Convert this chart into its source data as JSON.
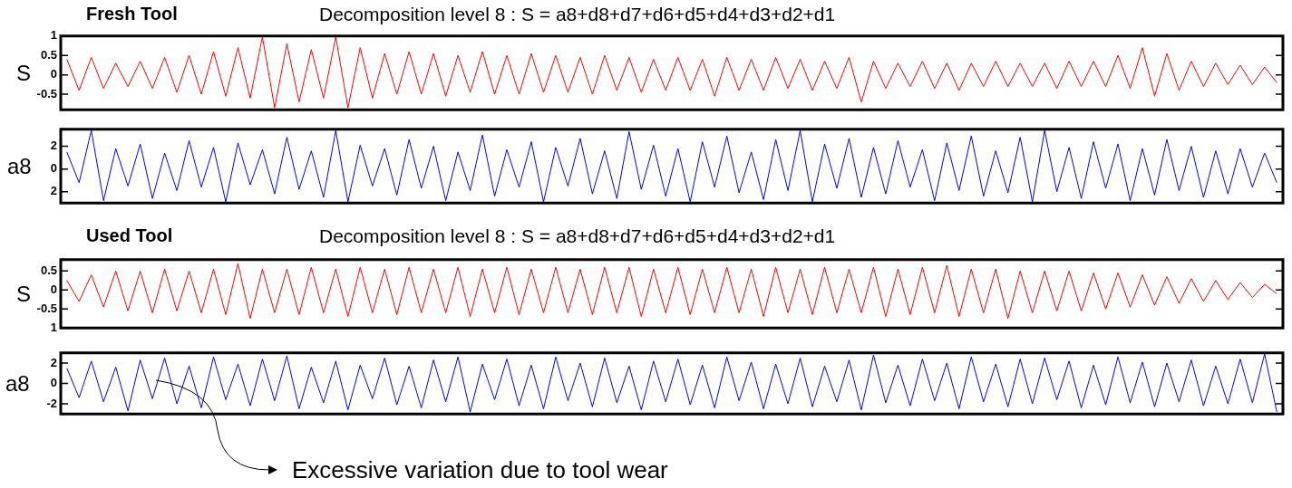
{
  "chart_data": [
    {
      "type": "line",
      "title": "Fresh Tool",
      "subtitle": "Decomposition level 8 : S = a8+d8+d7+d6+d5+d4+d3+d2+d1",
      "ylabel": "S",
      "tick_labels": "y",
      "marker": "none",
      "ylim": [
        -0.9,
        1
      ],
      "yticks": [
        -0.5,
        0,
        0.5,
        1
      ],
      "categories": [
        null,
        null,
        null,
        null,
        null,
        null,
        null,
        null,
        null,
        null,
        null,
        null,
        null,
        null,
        null,
        null,
        null,
        null,
        null,
        null,
        null,
        null,
        null,
        null,
        null,
        null,
        null,
        null,
        null,
        null,
        null,
        null,
        null,
        null,
        null,
        null,
        null,
        null,
        null,
        null,
        null,
        null,
        null,
        null,
        null,
        null,
        null,
        null,
        null,
        null,
        null,
        null,
        null,
        null,
        null,
        null,
        null,
        null,
        null,
        null,
        null,
        null,
        null,
        null,
        null,
        null,
        null,
        null,
        null,
        null,
        null,
        null,
        null,
        null,
        null,
        null,
        null,
        null,
        null,
        null,
        null,
        null,
        null,
        null,
        null,
        null,
        null,
        null,
        null,
        null,
        null,
        null,
        null,
        null,
        null,
        null,
        null,
        null,
        null,
        null
      ],
      "series": [
        {
          "color": "#ff0000",
          "values": [
            0.4,
            -0.4,
            0.45,
            -0.35,
            0.3,
            -0.3,
            0.35,
            -0.35,
            0.45,
            -0.45,
            0.5,
            -0.5,
            0.6,
            -0.55,
            0.7,
            -0.6,
            0.98,
            -0.85,
            0.8,
            -0.7,
            0.65,
            -0.6,
            0.98,
            -0.85,
            0.7,
            -0.6,
            0.55,
            -0.5,
            0.6,
            -0.5,
            0.55,
            -0.55,
            0.5,
            -0.45,
            0.6,
            -0.5,
            0.5,
            -0.5,
            0.55,
            -0.45,
            0.5,
            -0.45,
            0.45,
            -0.5,
            0.5,
            -0.4,
            0.45,
            -0.45,
            0.4,
            -0.4,
            0.45,
            -0.4,
            0.4,
            -0.55,
            0.45,
            -0.4,
            0.4,
            -0.4,
            0.45,
            -0.35,
            0.4,
            -0.4,
            0.35,
            -0.35,
            0.45,
            -0.7,
            0.35,
            -0.35,
            0.3,
            -0.3,
            0.35,
            -0.35,
            0.3,
            -0.4,
            0.3,
            -0.3,
            0.35,
            -0.3,
            0.3,
            -0.3,
            0.3,
            -0.35,
            0.35,
            -0.3,
            0.35,
            -0.3,
            0.5,
            -0.35,
            0.7,
            -0.55,
            0.55,
            -0.4,
            0.35,
            -0.3,
            0.3,
            -0.25,
            0.25,
            -0.25,
            0.2,
            -0.2
          ]
        }
      ]
    },
    {
      "type": "line",
      "ylabel": "a8",
      "tick_labels": "y",
      "marker": "none",
      "ylim": [
        -3,
        3.5
      ],
      "yticks": [
        {
          "value": -2,
          "label": "2"
        },
        0,
        2
      ],
      "categories": [
        null,
        null,
        null,
        null,
        null,
        null,
        null,
        null,
        null,
        null,
        null,
        null,
        null,
        null,
        null,
        null,
        null,
        null,
        null,
        null,
        null,
        null,
        null,
        null,
        null,
        null,
        null,
        null,
        null,
        null,
        null,
        null,
        null,
        null,
        null,
        null,
        null,
        null,
        null,
        null,
        null,
        null,
        null,
        null,
        null,
        null,
        null,
        null,
        null,
        null,
        null,
        null,
        null,
        null,
        null,
        null,
        null,
        null,
        null,
        null,
        null,
        null,
        null,
        null,
        null,
        null,
        null,
        null,
        null,
        null,
        null,
        null,
        null,
        null,
        null,
        null,
        null,
        null,
        null,
        null,
        null,
        null,
        null,
        null,
        null,
        null,
        null,
        null,
        null,
        null,
        null,
        null,
        null,
        null,
        null,
        null,
        null,
        null,
        null,
        null
      ],
      "series": [
        {
          "color": "#0000ff",
          "values": [
            1.5,
            -1.2,
            3.4,
            -2.8,
            1.8,
            -1.5,
            2.2,
            -2.6,
            1.4,
            -1.9,
            2.5,
            -1.6,
            1.9,
            -2.9,
            2.3,
            -1.4,
            1.7,
            -2.2,
            2.8,
            -1.8,
            1.6,
            -2.5,
            3.4,
            -2.9,
            2.1,
            -1.5,
            1.8,
            -2.3,
            2.6,
            -1.7,
            2.0,
            -2.8,
            1.5,
            -1.9,
            3.0,
            -2.4,
            1.7,
            -1.6,
            2.4,
            -2.9,
            1.9,
            -1.5,
            2.7,
            -2.2,
            1.6,
            -2.6,
            3.3,
            -1.8,
            2.1,
            -2.4,
            1.8,
            -2.9,
            2.4,
            -1.6,
            2.9,
            -2.1,
            1.5,
            -2.7,
            2.6,
            -1.9,
            3.4,
            -2.9,
            2.2,
            -1.7,
            2.7,
            -2.5,
            1.9,
            -2.2,
            2.5,
            -1.6,
            1.7,
            -2.8,
            2.3,
            -1.9,
            2.9,
            -2.4,
            1.6,
            -2.1,
            2.8,
            -2.9,
            3.4,
            -2.0,
            1.9,
            -2.6,
            2.4,
            -1.7,
            2.2,
            -2.8,
            1.8,
            -2.3,
            2.6,
            -1.9,
            2.0,
            -2.5,
            1.6,
            -2.2,
            1.8,
            -1.6,
            1.4,
            -1.2
          ]
        }
      ]
    },
    {
      "type": "line",
      "title": "Used Tool",
      "subtitle": "Decomposition level 8 : S = a8+d8+d7+d6+d5+d4+d3+d2+d1",
      "ylabel": "S",
      "tick_labels": "y",
      "marker": "none",
      "ylim": [
        -1,
        0.8
      ],
      "yticks": [
        {
          "value": -1,
          "label": "1"
        },
        -0.5,
        0,
        0.5
      ],
      "categories": [
        null,
        null,
        null,
        null,
        null,
        null,
        null,
        null,
        null,
        null,
        null,
        null,
        null,
        null,
        null,
        null,
        null,
        null,
        null,
        null,
        null,
        null,
        null,
        null,
        null,
        null,
        null,
        null,
        null,
        null,
        null,
        null,
        null,
        null,
        null,
        null,
        null,
        null,
        null,
        null,
        null,
        null,
        null,
        null,
        null,
        null,
        null,
        null,
        null,
        null,
        null,
        null,
        null,
        null,
        null,
        null,
        null,
        null,
        null,
        null,
        null,
        null,
        null,
        null,
        null,
        null,
        null,
        null,
        null,
        null,
        null,
        null,
        null,
        null,
        null,
        null,
        null,
        null,
        null,
        null,
        null,
        null,
        null,
        null,
        null,
        null,
        null,
        null,
        null,
        null,
        null,
        null,
        null,
        null,
        null,
        null,
        null,
        null,
        null,
        null
      ],
      "series": [
        {
          "color": "#ff0000",
          "values": [
            0.25,
            -0.3,
            0.4,
            -0.45,
            0.5,
            -0.55,
            0.5,
            -0.6,
            0.55,
            -0.55,
            0.5,
            -0.6,
            0.55,
            -0.65,
            0.7,
            -0.75,
            0.55,
            -0.6,
            0.55,
            -0.65,
            0.6,
            -0.6,
            0.55,
            -0.7,
            0.6,
            -0.6,
            0.55,
            -0.65,
            0.6,
            -0.6,
            0.55,
            -0.6,
            0.6,
            -0.7,
            0.55,
            -0.6,
            0.6,
            -0.65,
            0.55,
            -0.6,
            0.6,
            -0.6,
            0.55,
            -0.65,
            0.6,
            -0.6,
            0.6,
            -0.7,
            0.55,
            -0.6,
            0.6,
            -0.65,
            0.55,
            -0.6,
            0.6,
            -0.6,
            0.55,
            -0.7,
            0.6,
            -0.6,
            0.55,
            -0.65,
            0.6,
            -0.6,
            0.55,
            -0.6,
            0.6,
            -0.7,
            0.55,
            -0.65,
            0.6,
            -0.6,
            0.65,
            -0.7,
            0.55,
            -0.6,
            0.55,
            -0.75,
            0.5,
            -0.6,
            0.5,
            -0.55,
            0.5,
            -0.55,
            0.45,
            -0.5,
            0.45,
            -0.45,
            0.4,
            -0.4,
            0.35,
            -0.35,
            0.3,
            -0.3,
            0.25,
            -0.25,
            0.2,
            -0.2,
            0.15,
            -0.1
          ]
        }
      ]
    },
    {
      "type": "line",
      "ylabel": "a8",
      "tick_labels": "y",
      "marker": "none",
      "ylim": [
        -3,
        3
      ],
      "yticks": [
        -2,
        0,
        2
      ],
      "annotations": [
        "Excessive variation due to tool wear"
      ],
      "categories": [
        null,
        null,
        null,
        null,
        null,
        null,
        null,
        null,
        null,
        null,
        null,
        null,
        null,
        null,
        null,
        null,
        null,
        null,
        null,
        null,
        null,
        null,
        null,
        null,
        null,
        null,
        null,
        null,
        null,
        null,
        null,
        null,
        null,
        null,
        null,
        null,
        null,
        null,
        null,
        null,
        null,
        null,
        null,
        null,
        null,
        null,
        null,
        null,
        null,
        null,
        null,
        null,
        null,
        null,
        null,
        null,
        null,
        null,
        null,
        null,
        null,
        null,
        null,
        null,
        null,
        null,
        null,
        null,
        null,
        null,
        null,
        null,
        null,
        null,
        null,
        null,
        null,
        null,
        null,
        null,
        null,
        null,
        null,
        null,
        null,
        null,
        null,
        null,
        null,
        null,
        null,
        null,
        null,
        null,
        null,
        null,
        null,
        null,
        null,
        null
      ],
      "series": [
        {
          "color": "#0000ff",
          "values": [
            1.5,
            -1.4,
            2.2,
            -1.8,
            1.6,
            -2.7,
            2.3,
            -1.5,
            2.5,
            -2.0,
            1.7,
            -2.4,
            2.6,
            -1.6,
            1.9,
            -2.2,
            2.4,
            -1.7,
            2.7,
            -2.5,
            1.6,
            -1.9,
            2.2,
            -2.6,
            1.8,
            -1.5,
            2.5,
            -2.1,
            1.7,
            -2.4,
            2.3,
            -1.8,
            2.6,
            -2.8,
            1.9,
            -1.6,
            2.4,
            -2.2,
            1.8,
            -2.5,
            2.6,
            -1.7,
            2.0,
            -2.3,
            2.5,
            -1.9,
            1.7,
            -2.6,
            2.2,
            -1.8,
            2.4,
            -2.1,
            1.8,
            -2.4,
            2.6,
            -1.7,
            2.1,
            -2.5,
            1.9,
            -2.0,
            2.5,
            -2.3,
            1.7,
            -1.8,
            2.3,
            -2.6,
            2.8,
            -1.9,
            1.8,
            -2.2,
            2.4,
            -1.7,
            2.0,
            -2.5,
            2.6,
            -1.8,
            1.9,
            -2.3,
            2.4,
            -2.0,
            2.5,
            -1.6,
            2.2,
            -2.4,
            1.8,
            -2.1,
            2.6,
            -1.9,
            2.1,
            -2.3,
            2.0,
            -1.8,
            2.3,
            -2.2,
            1.7,
            -2.0,
            2.4,
            -1.9,
            2.9,
            -2.8
          ]
        }
      ]
    }
  ]
}
